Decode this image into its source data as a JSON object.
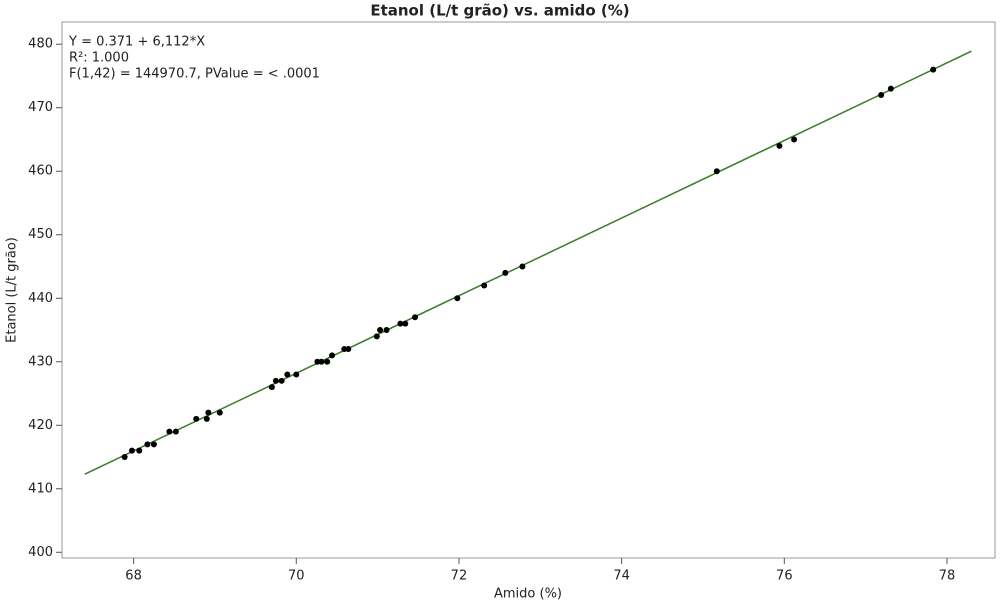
{
  "chart_data": {
    "type": "scatter",
    "title": "Etanol (L/t grão) vs. amido (%)",
    "x_label": "Amido (%)",
    "y_label": "Etanol (L/t grão)",
    "annotations": [
      "Y = 0.371 + 6,112*X",
      "R²: 1.000",
      "F(1,42) = 144970.7, PValue = < .0001"
    ],
    "xlim": [
      67.12,
      78.59
    ],
    "ylim": [
      399.1,
      483.5
    ],
    "xticks": [
      68,
      70,
      72,
      74,
      76,
      78
    ],
    "yticks": [
      400,
      410,
      420,
      430,
      440,
      450,
      460,
      470,
      480
    ],
    "point_color": "#000000",
    "x": [
      67.89,
      67.98,
      68.07,
      68.17,
      68.25,
      68.44,
      68.52,
      68.77,
      68.9,
      68.92,
      69.06,
      69.7,
      69.75,
      69.82,
      69.89,
      70.0,
      70.26,
      70.31,
      70.38,
      70.44,
      70.59,
      70.64,
      70.99,
      71.03,
      71.11,
      71.28,
      71.34,
      71.46,
      71.98,
      72.31,
      72.57,
      72.78,
      75.17,
      75.94,
      76.12,
      77.19,
      77.31,
      77.83
    ],
    "values": [
      415,
      416,
      416,
      417,
      417,
      419,
      419,
      421,
      421,
      422,
      422,
      426,
      427,
      427,
      428,
      428,
      430,
      430,
      430,
      431,
      432,
      432,
      434,
      435,
      435,
      436,
      436,
      437,
      440,
      442,
      444,
      445,
      460,
      464,
      465,
      472,
      473,
      476
    ],
    "fit_line": {
      "color": "#3a7a2a",
      "x": [
        67.4,
        78.3
      ],
      "values": [
        412.3,
        478.9
      ]
    }
  }
}
